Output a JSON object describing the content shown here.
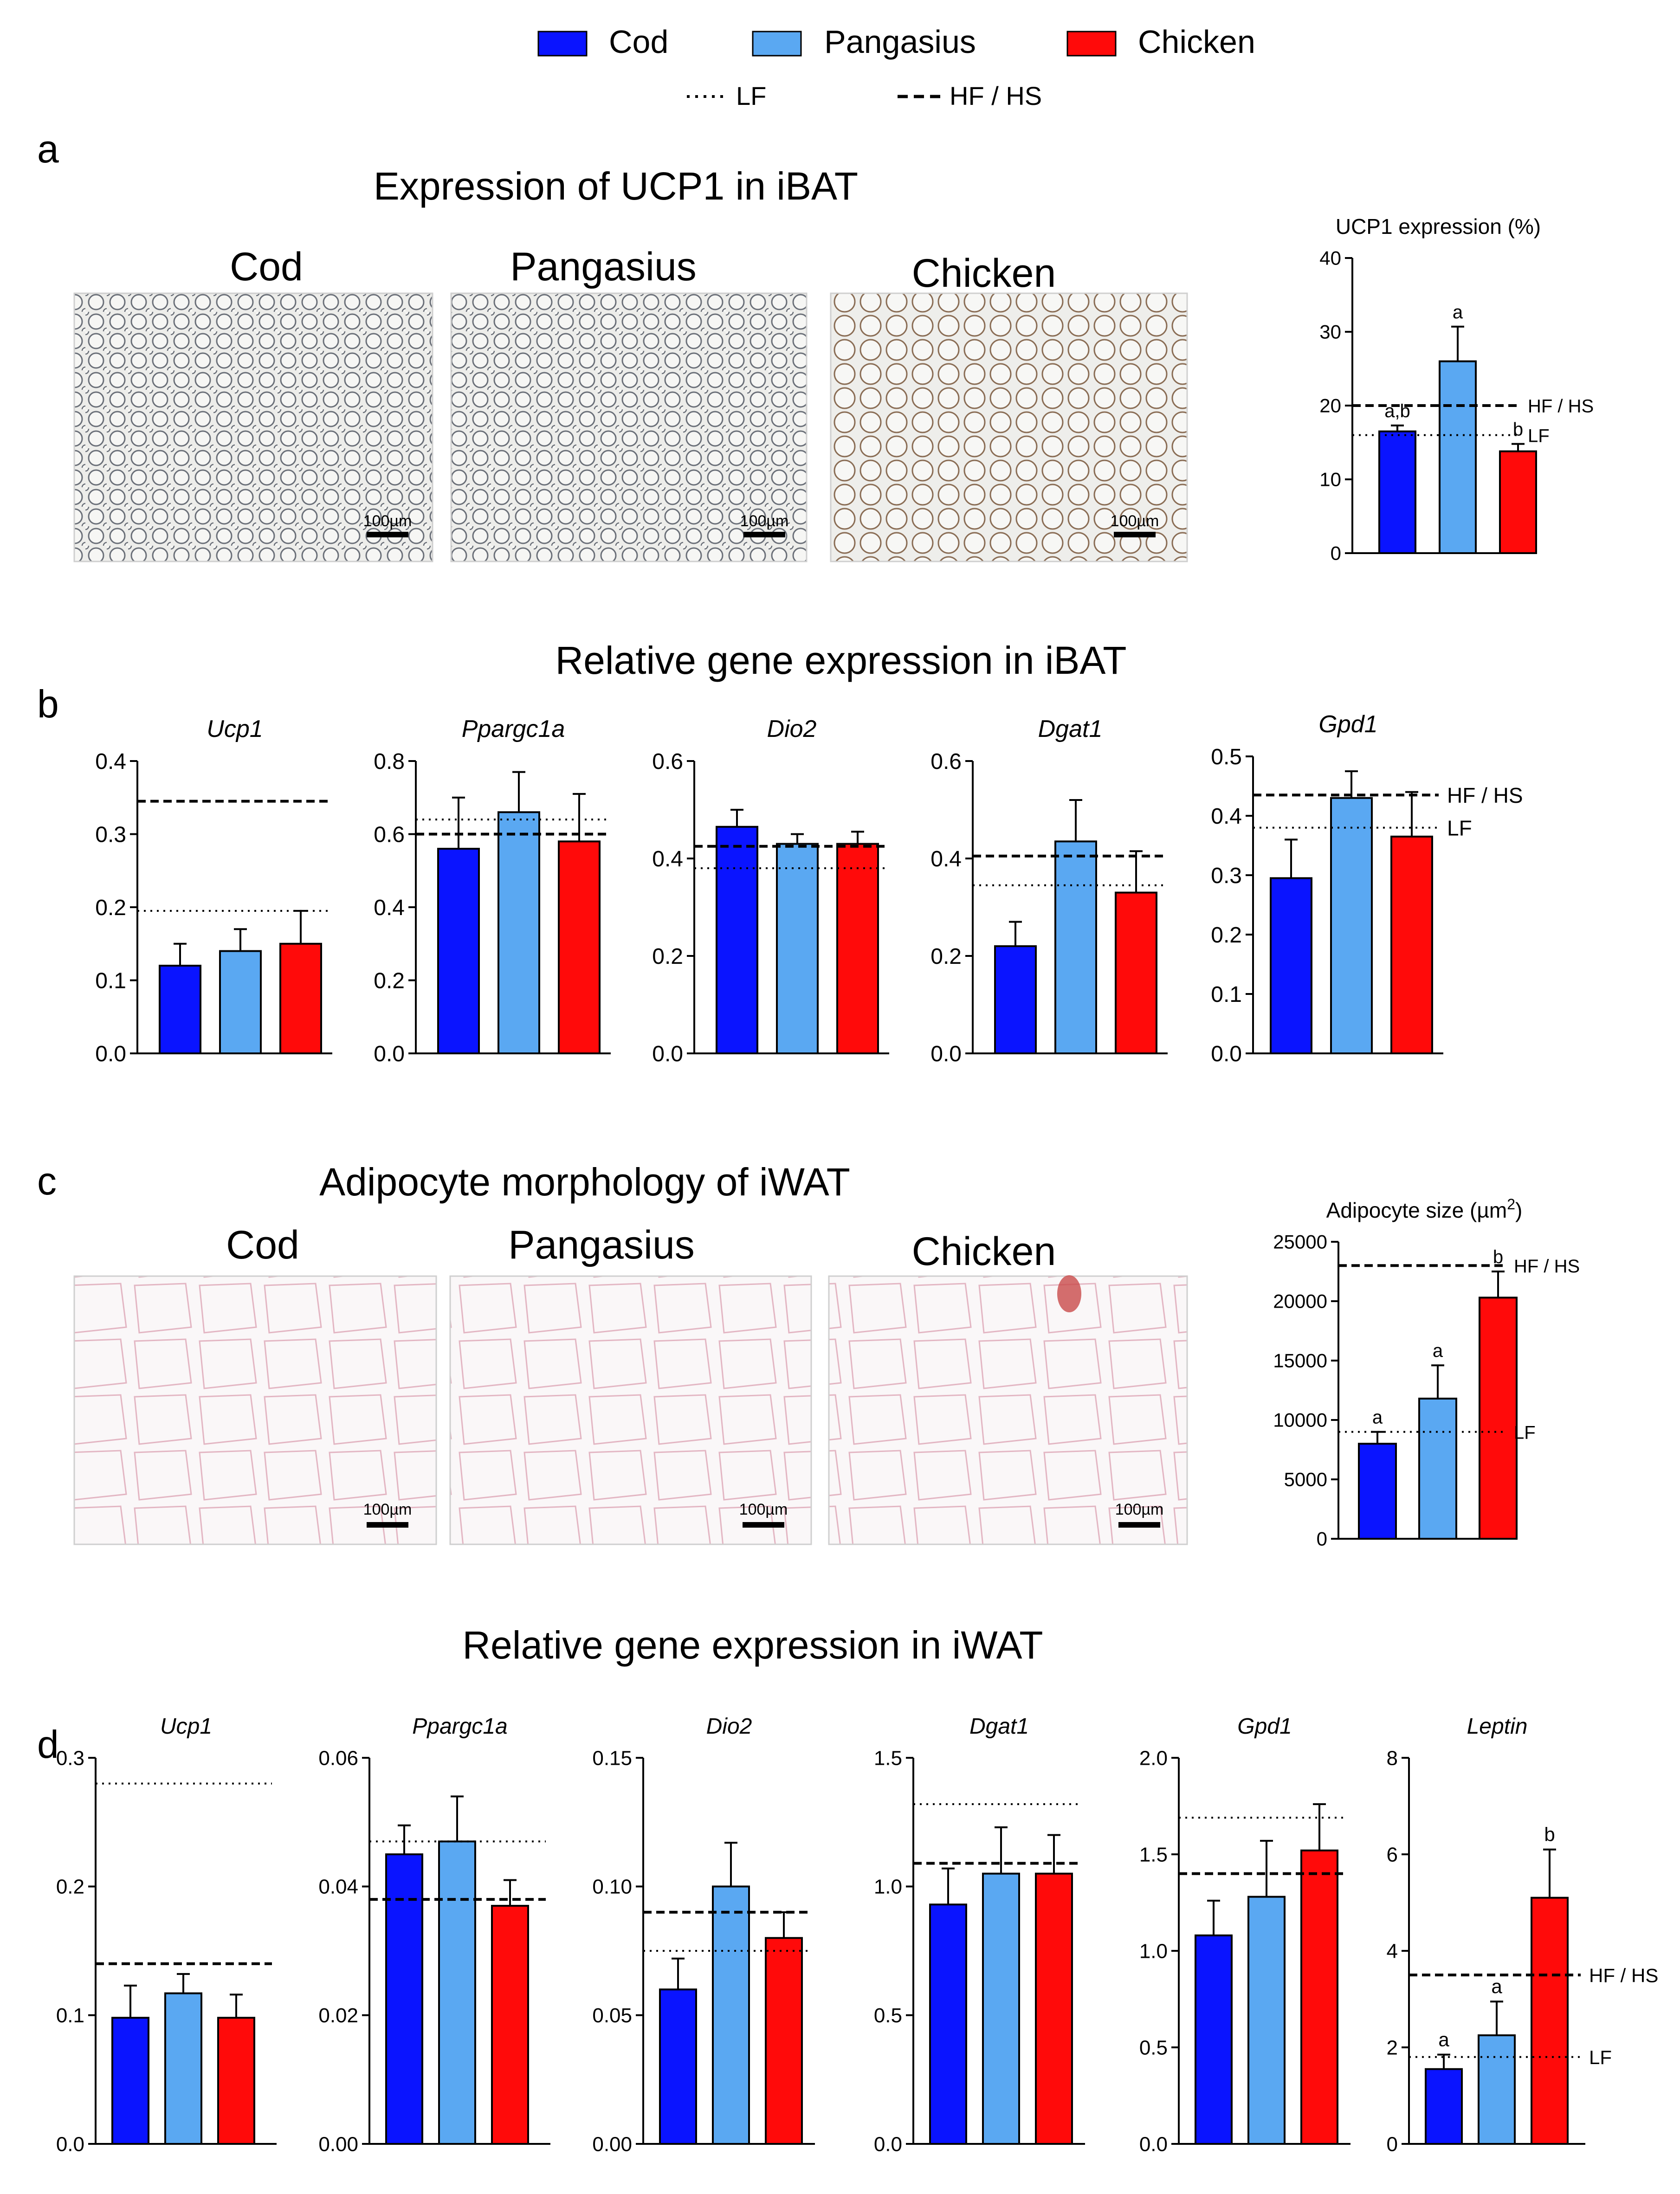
{
  "colors": {
    "cod": "#0a14ff",
    "pangasius": "#5aa8f2",
    "chicken": "#ff0a0a",
    "axis": "#000000"
  },
  "legend": {
    "items": [
      {
        "label": "Cod",
        "color": "#0a14ff"
      },
      {
        "label": "Pangasius",
        "color": "#5aa8f2"
      },
      {
        "label": "Chicken",
        "color": "#ff0a0a"
      }
    ],
    "lines": [
      {
        "label": "LF",
        "style": "dotted"
      },
      {
        "label": "HF / HS",
        "style": "dashed"
      }
    ]
  },
  "panels": {
    "a": {
      "letter": "a",
      "title": "Expression of UCP1 in iBAT",
      "images": [
        "Cod",
        "Pangasius",
        "Chicken"
      ],
      "scale_bar": "100µm"
    },
    "b": {
      "letter": "b",
      "title": "Relative gene expression in iBAT"
    },
    "c": {
      "letter": "c",
      "title": "Adipocyte morphology of iWAT",
      "images": [
        "Cod",
        "Pangasius",
        "Chicken"
      ],
      "scale_bar": "100µm"
    },
    "d": {
      "letter": "d",
      "title": "Relative gene expression in iWAT"
    }
  },
  "chart_data": [
    {
      "id": "a-ucp1",
      "panel": "a",
      "type": "bar",
      "title": "UCP1 expression (%)",
      "italic": false,
      "categories": [
        "Cod",
        "Pangasius",
        "Chicken"
      ],
      "values": [
        16.5,
        26,
        13.8
      ],
      "errors": [
        0.8,
        4.7,
        1.0
      ],
      "ylim": [
        0,
        40
      ],
      "yticks": [
        "0",
        "10",
        "20",
        "30",
        "40"
      ],
      "lf": 16,
      "hfhs": 20,
      "ref_labels": true,
      "sig": [
        "a,b",
        "a",
        "b"
      ]
    },
    {
      "id": "b-ucp1",
      "panel": "b",
      "type": "bar",
      "title": "Ucp1",
      "italic": true,
      "categories": [
        "Cod",
        "Pangasius",
        "Chicken"
      ],
      "values": [
        0.12,
        0.14,
        0.15
      ],
      "errors": [
        0.03,
        0.03,
        0.045
      ],
      "ylim": [
        0,
        0.4
      ],
      "yticks": [
        "0.0",
        "0.1",
        "0.2",
        "0.3",
        "0.4"
      ],
      "lf": 0.195,
      "hfhs": 0.345,
      "ref_labels": false,
      "sig": []
    },
    {
      "id": "b-ppargc1a",
      "panel": "b",
      "type": "bar",
      "title": "Ppargc1a",
      "italic": true,
      "categories": [
        "Cod",
        "Pangasius",
        "Chicken"
      ],
      "values": [
        0.56,
        0.66,
        0.58
      ],
      "errors": [
        0.14,
        0.11,
        0.13
      ],
      "ylim": [
        0,
        0.8
      ],
      "yticks": [
        "0.0",
        "0.2",
        "0.4",
        "0.6",
        "0.8"
      ],
      "lf": 0.64,
      "hfhs": 0.6,
      "ref_labels": false,
      "sig": []
    },
    {
      "id": "b-dio2",
      "panel": "b",
      "type": "bar",
      "title": "Dio2",
      "italic": true,
      "categories": [
        "Cod",
        "Pangasius",
        "Chicken"
      ],
      "values": [
        0.465,
        0.43,
        0.43
      ],
      "errors": [
        0.035,
        0.02,
        0.025
      ],
      "ylim": [
        0,
        0.6
      ],
      "yticks": [
        "0.0",
        "0.2",
        "0.4",
        "0.6"
      ],
      "lf": 0.38,
      "hfhs": 0.425,
      "ref_labels": false,
      "sig": []
    },
    {
      "id": "b-dgat1",
      "panel": "b",
      "type": "bar",
      "title": "Dgat1",
      "italic": true,
      "categories": [
        "Cod",
        "Pangasius",
        "Chicken"
      ],
      "values": [
        0.22,
        0.435,
        0.33
      ],
      "errors": [
        0.05,
        0.085,
        0.085
      ],
      "ylim": [
        0,
        0.6
      ],
      "yticks": [
        "0.0",
        "0.2",
        "0.4",
        "0.6"
      ],
      "lf": 0.345,
      "hfhs": 0.405,
      "ref_labels": false,
      "sig": []
    },
    {
      "id": "b-gpd1",
      "panel": "b",
      "type": "bar",
      "title": "Gpd1",
      "italic": true,
      "categories": [
        "Cod",
        "Pangasius",
        "Chicken"
      ],
      "values": [
        0.295,
        0.43,
        0.365
      ],
      "errors": [
        0.065,
        0.045,
        0.075
      ],
      "ylim": [
        0,
        0.5
      ],
      "yticks": [
        "0.0",
        "0.1",
        "0.2",
        "0.3",
        "0.4",
        "0.5"
      ],
      "lf": 0.38,
      "hfhs": 0.435,
      "ref_labels": true,
      "sig": []
    },
    {
      "id": "c-size",
      "panel": "c",
      "type": "bar",
      "title": "Adipocyte size (µm",
      "title_sup": "2",
      "title_end": ")",
      "italic": false,
      "categories": [
        "Cod",
        "Pangasius",
        "Chicken"
      ],
      "values": [
        8000,
        11800,
        20300
      ],
      "errors": [
        1000,
        2800,
        2200
      ],
      "ylim": [
        0,
        25000
      ],
      "yticks": [
        "0",
        "5000",
        "10000",
        "15000",
        "20000",
        "25000"
      ],
      "lf": 9000,
      "hfhs": 23000,
      "ref_labels": true,
      "sig": [
        "a",
        "a",
        "b"
      ]
    },
    {
      "id": "d-ucp1",
      "panel": "d",
      "type": "bar",
      "title": "Ucp1",
      "italic": true,
      "categories": [
        "Cod",
        "Pangasius",
        "Chicken"
      ],
      "values": [
        0.098,
        0.117,
        0.098
      ],
      "errors": [
        0.025,
        0.015,
        0.018
      ],
      "ylim": [
        0,
        0.3
      ],
      "yticks": [
        "0.0",
        "0.1",
        "0.2",
        "0.3"
      ],
      "lf": 0.28,
      "hfhs": 0.14,
      "ref_labels": false,
      "sig": []
    },
    {
      "id": "d-ppargc1a",
      "panel": "d",
      "type": "bar",
      "title": "Ppargc1a",
      "italic": true,
      "categories": [
        "Cod",
        "Pangasius",
        "Chicken"
      ],
      "values": [
        0.045,
        0.047,
        0.037
      ],
      "errors": [
        0.0045,
        0.007,
        0.004
      ],
      "ylim": [
        0,
        0.06
      ],
      "yticks": [
        "0.00",
        "0.02",
        "0.04",
        "0.06"
      ],
      "lf": 0.047,
      "hfhs": 0.038,
      "ref_labels": false,
      "sig": []
    },
    {
      "id": "d-dio2",
      "panel": "d",
      "type": "bar",
      "title": "Dio2",
      "italic": true,
      "categories": [
        "Cod",
        "Pangasius",
        "Chicken"
      ],
      "values": [
        0.06,
        0.1,
        0.08
      ],
      "errors": [
        0.012,
        0.017,
        0.01
      ],
      "ylim": [
        0,
        0.15
      ],
      "yticks": [
        "0.00",
        "0.05",
        "0.10",
        "0.15"
      ],
      "lf": 0.075,
      "hfhs": 0.09,
      "ref_labels": false,
      "sig": []
    },
    {
      "id": "d-dgat1",
      "panel": "d",
      "type": "bar",
      "title": "Dgat1",
      "italic": true,
      "categories": [
        "Cod",
        "Pangasius",
        "Chicken"
      ],
      "values": [
        0.93,
        1.05,
        1.05
      ],
      "errors": [
        0.14,
        0.18,
        0.15
      ],
      "ylim": [
        0,
        1.5
      ],
      "yticks": [
        "0.0",
        "0.5",
        "1.0",
        "1.5"
      ],
      "lf": 1.32,
      "hfhs": 1.09,
      "ref_labels": false,
      "sig": []
    },
    {
      "id": "d-gpd1",
      "panel": "d",
      "type": "bar",
      "title": "Gpd1",
      "italic": true,
      "categories": [
        "Cod",
        "Pangasius",
        "Chicken"
      ],
      "values": [
        1.08,
        1.28,
        1.52
      ],
      "errors": [
        0.18,
        0.29,
        0.24
      ],
      "ylim": [
        0,
        2.0
      ],
      "yticks": [
        "0.0",
        "0.5",
        "1.0",
        "1.5",
        "2.0"
      ],
      "lf": 1.69,
      "hfhs": 1.4,
      "ref_labels": false,
      "sig": []
    },
    {
      "id": "d-leptin",
      "panel": "d",
      "type": "bar",
      "title": "Leptin",
      "italic": true,
      "categories": [
        "Cod",
        "Pangasius",
        "Chicken"
      ],
      "values": [
        1.55,
        2.25,
        5.1
      ],
      "errors": [
        0.3,
        0.7,
        1.0
      ],
      "ylim": [
        0,
        8
      ],
      "yticks": [
        "0",
        "2",
        "4",
        "6",
        "8"
      ],
      "lf": 1.8,
      "hfhs": 3.5,
      "ref_labels": true,
      "sig": [
        "a",
        "a",
        "b"
      ]
    }
  ]
}
